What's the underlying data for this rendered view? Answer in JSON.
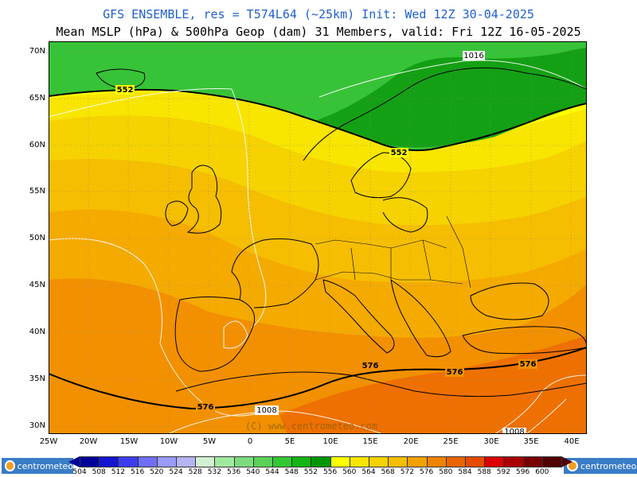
{
  "title": "GFS ENSEMBLE, res = T574L64 (~25km)    Init: Wed 12Z 30-04-2025",
  "subtitle": "Mean MSLP (hPa) & 500hPa Geop (dam)   31 Members, valid: Fri 12Z 16-05-2025",
  "watermark": "(C) www.centrometeo.com",
  "logo_text": "centrometeo",
  "lat_labels": [
    "70N",
    "65N",
    "60N",
    "55N",
    "50N",
    "45N",
    "40N",
    "35N",
    "30N"
  ],
  "lon_labels": [
    "25W",
    "20W",
    "15W",
    "10W",
    "5W",
    "0",
    "5E",
    "10E",
    "15E",
    "20E",
    "25E",
    "30E",
    "35E",
    "40E"
  ],
  "contour_labels": {
    "geop_552_a": "552",
    "geop_552_b": "552",
    "geop_576_a": "576",
    "geop_576_b": "576",
    "geop_576_c": "576",
    "geop_576_d": "576",
    "mslp_1016": "1016",
    "mslp_1008_a": "1008",
    "mslp_1008_b": "1008"
  },
  "colorbar": {
    "values": [
      "504",
      "508",
      "512",
      "516",
      "520",
      "524",
      "528",
      "532",
      "536",
      "540",
      "544",
      "548",
      "552",
      "556",
      "560",
      "564",
      "568",
      "572",
      "576",
      "580",
      "584",
      "588",
      "592",
      "596",
      "600"
    ],
    "colors": [
      "#00009a",
      "#1414d2",
      "#3c3cf0",
      "#6e6ef8",
      "#9a9aff",
      "#b4b4f0",
      "#d2f0d2",
      "#a0eaa0",
      "#7cdc7c",
      "#5ad25a",
      "#32c832",
      "#14b414",
      "#009600",
      "#ffff00",
      "#f8e600",
      "#f5d200",
      "#f5be00",
      "#f5a000",
      "#f08200",
      "#eb6400",
      "#e64b00",
      "#dc0000",
      "#aa0000",
      "#780000",
      "#500000"
    ]
  },
  "map_colors": {
    "geop_548": "#14a014",
    "geop_552": "#37c337",
    "geop_556": "#ffff00",
    "geop_560": "#f8e500",
    "geop_564": "#f5d200",
    "geop_568": "#f5be00",
    "geop_572": "#f5aa00",
    "geop_576": "#f29000",
    "geop_580": "#ee7000",
    "geop_584": "#e84800"
  }
}
